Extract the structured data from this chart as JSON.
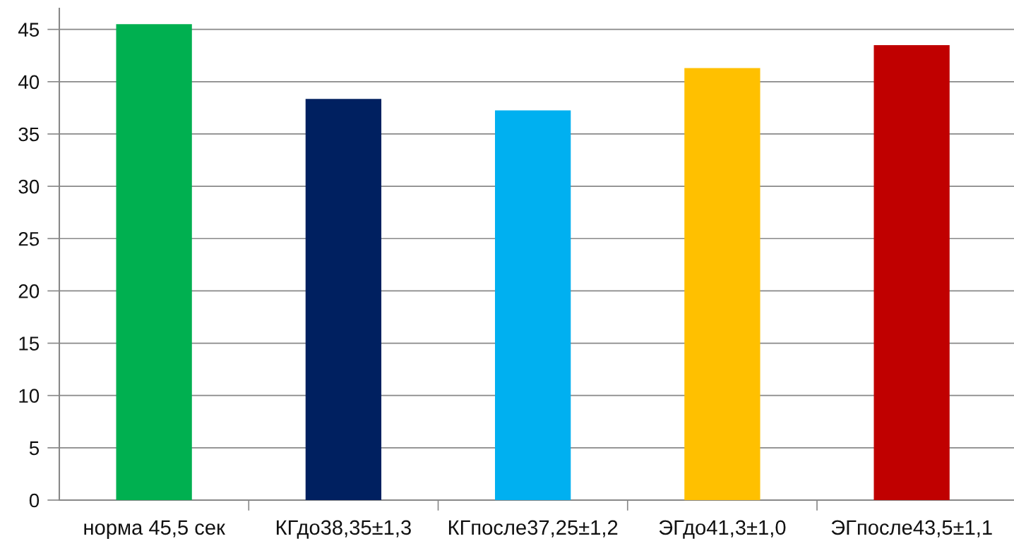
{
  "chart_data": {
    "type": "bar",
    "categories": [
      "норма 45,5 сек",
      "КГдо38,35±1,3",
      "КГпосле37,25±1,2",
      "ЭГдо41,3±1,0",
      "ЭГпосле43,5±1,1"
    ],
    "values": [
      45.5,
      38.35,
      37.25,
      41.3,
      43.5
    ],
    "colors": [
      "#00b050",
      "#002060",
      "#00b0f0",
      "#ffc000",
      "#c00000"
    ],
    "ylim": [
      0,
      47
    ],
    "yticks": [
      0,
      5,
      10,
      15,
      20,
      25,
      30,
      35,
      40,
      45
    ],
    "grid": "y",
    "legend": false
  }
}
